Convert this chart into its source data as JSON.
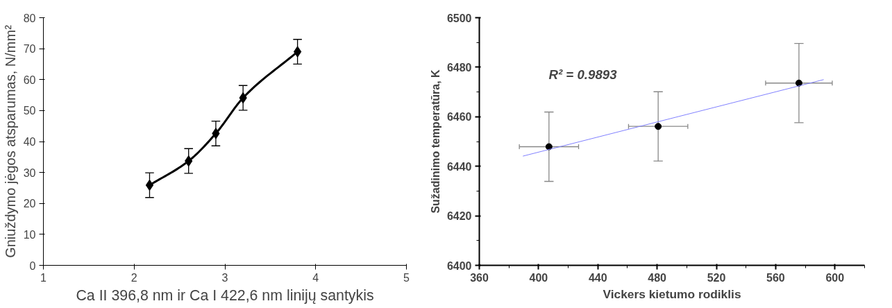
{
  "chart_data": [
    {
      "type": "line",
      "xlabel": "Ca II 396,8 nm ir Ca I 422,6 nm linijų santykis",
      "ylabel": "Gniuždymo jėgos atsparumas, N/mm²",
      "xlim": [
        1,
        5
      ],
      "xticks": [
        1,
        2,
        3,
        4,
        5
      ],
      "ylim": [
        0,
        80
      ],
      "yticks": [
        0,
        10,
        20,
        30,
        40,
        50,
        60,
        70,
        80
      ],
      "grid": false,
      "marker": "diamond",
      "line_style": "solid",
      "series": [
        {
          "color": "#000000",
          "x": [
            2.17,
            2.6,
            2.9,
            3.2,
            3.8
          ],
          "values": [
            25.9,
            33.7,
            42.6,
            54.1,
            69.0
          ],
          "errors": [
            4,
            4,
            4,
            4,
            4
          ]
        }
      ]
    },
    {
      "type": "scatter",
      "xlabel": "Vickers kietumo rodiklis",
      "ylabel": "Sužadinimo temperatūra, K",
      "xlim": [
        360,
        620
      ],
      "xticks": [
        360,
        400,
        440,
        480,
        520,
        560,
        600
      ],
      "ylim": [
        6400,
        6500
      ],
      "yticks": [
        6400,
        6420,
        6440,
        6460,
        6480,
        6500
      ],
      "grid": false,
      "marker": "circle",
      "annotations": [
        "R² = 0.9893"
      ],
      "series": [
        {
          "color": "#000000",
          "x": [
            407,
            480.7,
            575.7
          ],
          "values": [
            6447.9,
            6456.1,
            6473.6
          ],
          "errors": [
            14,
            14,
            16
          ],
          "xerrors": [
            20,
            20,
            22.5
          ]
        },
        {
          "type": "line",
          "color": "#8080ff",
          "marker": "none",
          "x": [
            389.4,
            592.4
          ],
          "values": [
            6444.1,
            6475.0
          ]
        }
      ]
    }
  ]
}
